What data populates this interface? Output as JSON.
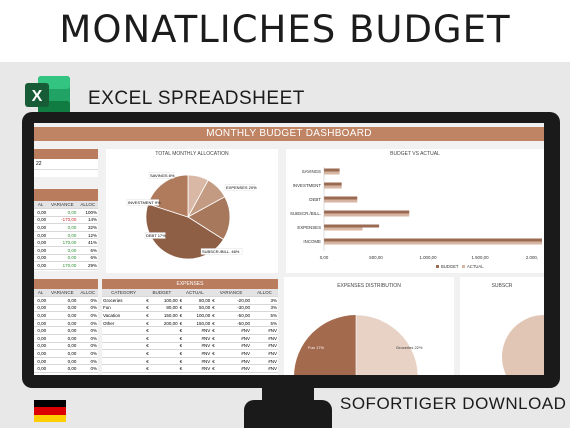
{
  "banner": {
    "title": "MONATLICHES BUDGET",
    "excel_label": "EXCEL SPREADSHEET",
    "excel_icon_letter": "X",
    "download_label": "SOFORTIGER DOWNLOAD"
  },
  "dashboard": {
    "title": "MONTHLY BUDGET DASHBOARD",
    "top_left": {
      "partial_value": "22"
    },
    "income_table": {
      "headers": [
        "AL",
        "VARIANCE",
        "ALLOC"
      ],
      "rows": [
        {
          "actual": "0,00",
          "variance": "0,00",
          "alloc": "100%",
          "variance_color": "green"
        },
        {
          "actual": "0,00",
          "variance": "-170,00",
          "alloc": "14%",
          "variance_color": "red"
        },
        {
          "actual": "0,00",
          "variance": "0,00",
          "alloc": "32%",
          "variance_color": "green"
        },
        {
          "actual": "0,00",
          "variance": "0,00",
          "alloc": "12%",
          "variance_color": "green"
        },
        {
          "actual": "0,00",
          "variance": "170,00",
          "alloc": "41%",
          "variance_color": "green"
        },
        {
          "actual": "0,00",
          "variance": "0,00",
          "alloc": "6%",
          "variance_color": "green"
        },
        {
          "actual": "0,00",
          "variance": "0,00",
          "alloc": "6%",
          "variance_color": "green"
        },
        {
          "actual": "0,00",
          "variance": "170,00",
          "alloc": "29%",
          "variance_color": "green"
        }
      ]
    },
    "allocation_pie": {
      "title": "TOTAL MONTHLY ALLOCATION",
      "labels": [
        "SAVINGS 8%",
        "INVESTMENT 9%",
        "DEBT 17%",
        "SUBSCR./BILL. 46%",
        "EXPENSES 20%"
      ]
    },
    "bva_chart": {
      "title": "BUDGET VS ACTUAL",
      "categories": [
        "SAVINGS",
        "INVESTMENT",
        "DEBT",
        "SUBSCR./BILL.",
        "EXPENSES",
        "INCOME"
      ],
      "ticks": [
        "0,00",
        "500,00",
        "1.000,00",
        "1.500,00",
        "2.000,"
      ],
      "legend_budget": "BUDGET",
      "legend_actual": "ACTUAL"
    },
    "expenses_table": {
      "header": "EXPENSES",
      "columns": [
        "CATEGORY",
        "BUDGET",
        "ACTUAL",
        "VARIANCE",
        "ALLOC"
      ],
      "rows": [
        {
          "category": "Groceries",
          "cur1": "€",
          "budget": "100,00",
          "cur2": "€",
          "actual": "80,00",
          "cur3": "€",
          "variance": "-20,00",
          "alloc": "3%"
        },
        {
          "category": "Fun",
          "cur1": "€",
          "budget": "80,00",
          "cur2": "€",
          "actual": "50,00",
          "cur3": "€",
          "variance": "-30,00",
          "alloc": "3%"
        },
        {
          "category": "Vacation",
          "cur1": "€",
          "budget": "150,00",
          "cur2": "€",
          "actual": "100,00",
          "cur3": "€",
          "variance": "-50,00",
          "alloc": "5%"
        },
        {
          "category": "Other",
          "cur1": "€",
          "budget": "200,00",
          "cur2": "€",
          "actual": "150,00",
          "cur3": "€",
          "variance": "-50,00",
          "alloc": "5%"
        },
        {
          "category": "",
          "cur1": "€",
          "budget": "",
          "cur2": "€",
          "actual": "#NV",
          "cur3": "€",
          "variance": "#NV",
          "alloc": "#NV"
        },
        {
          "category": "",
          "cur1": "€",
          "budget": "",
          "cur2": "€",
          "actual": "#NV",
          "cur3": "€",
          "variance": "#NV",
          "alloc": "#NV"
        },
        {
          "category": "",
          "cur1": "€",
          "budget": "",
          "cur2": "€",
          "actual": "#NV",
          "cur3": "€",
          "variance": "#NV",
          "alloc": "#NV"
        },
        {
          "category": "",
          "cur1": "€",
          "budget": "",
          "cur2": "€",
          "actual": "#NV",
          "cur3": "€",
          "variance": "#NV",
          "alloc": "#NV"
        },
        {
          "category": "",
          "cur1": "€",
          "budget": "",
          "cur2": "€",
          "actual": "#NV",
          "cur3": "€",
          "variance": "#NV",
          "alloc": "#NV"
        },
        {
          "category": "",
          "cur1": "€",
          "budget": "",
          "cur2": "€",
          "actual": "#NV",
          "cur3": "€",
          "variance": "#NV",
          "alloc": "#NV"
        }
      ]
    },
    "left_lower_table": {
      "headers": [
        "AL",
        "VARIANCE",
        "ALLOC"
      ],
      "rows": [
        {
          "actual": "0,00",
          "variance": "0,00",
          "alloc": "0%"
        },
        {
          "actual": "0,00",
          "variance": "0,00",
          "alloc": "0%"
        },
        {
          "actual": "0,00",
          "variance": "0,00",
          "alloc": "0%"
        },
        {
          "actual": "0,00",
          "variance": "0,00",
          "alloc": "0%"
        },
        {
          "actual": "0,00",
          "variance": "0,00",
          "alloc": "0%"
        },
        {
          "actual": "0,00",
          "variance": "0,00",
          "alloc": "0%"
        },
        {
          "actual": "0,00",
          "variance": "0,00",
          "alloc": "0%"
        },
        {
          "actual": "0,00",
          "variance": "0,00",
          "alloc": "0%"
        },
        {
          "actual": "0,00",
          "variance": "0,00",
          "alloc": "0%"
        },
        {
          "actual": "0,00",
          "variance": "0,00",
          "alloc": "0%"
        }
      ]
    },
    "expenses_distribution": {
      "title": "EXPENSES DISTRIBUTION",
      "labels": [
        "Fun 17%",
        "Groceries 22%"
      ]
    },
    "subs_panel": {
      "title": "SUBSCR"
    }
  },
  "chart_data": [
    {
      "type": "pie",
      "title": "TOTAL MONTHLY ALLOCATION",
      "categories": [
        "SAVINGS",
        "INVESTMENT",
        "DEBT",
        "SUBSCR./BILL.",
        "EXPENSES"
      ],
      "values": [
        8,
        9,
        17,
        46,
        20
      ],
      "colors": [
        "#d9b9a5",
        "#c39a82",
        "#a8785d",
        "#8e5f45",
        "#b07a5c"
      ]
    },
    {
      "type": "bar",
      "title": "BUDGET VS ACTUAL",
      "categories": [
        "SAVINGS",
        "INVESTMENT",
        "DEBT",
        "SUBSCR./BILL.",
        "EXPENSES",
        "INCOME"
      ],
      "series": [
        {
          "name": "BUDGET",
          "values": [
            150,
            170,
            320,
            820,
            530,
            2100
          ]
        },
        {
          "name": "ACTUAL",
          "values": [
            150,
            170,
            320,
            820,
            370,
            2100
          ]
        }
      ],
      "xlim": [
        0,
        2000
      ],
      "colors": {
        "BUDGET": "#9b6a52",
        "ACTUAL": "#d6b6a2"
      }
    },
    {
      "type": "pie",
      "title": "EXPENSES DISTRIBUTION",
      "categories": [
        "Fun",
        "Groceries"
      ],
      "values": [
        17,
        22
      ]
    }
  ]
}
